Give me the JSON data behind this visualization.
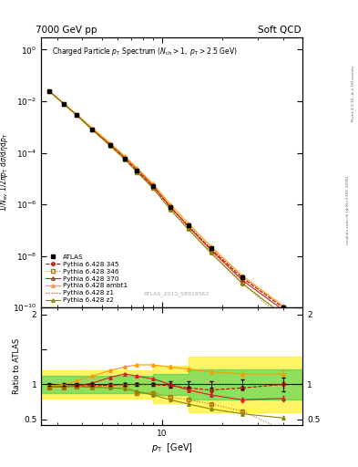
{
  "title_left": "7000 GeV pp",
  "title_right": "Soft QCD",
  "plot_title": "Charged Particle p_{T} Spectrum (N_{ch} > 1, p_{T} > 2.5 GeV)",
  "ylabel_main": "1/N_{ev} 1/2πp_{T} dσ/dηdp_{T}",
  "ylabel_ratio": "Ratio to ATLAS",
  "xlabel": "p_{T}  [GeV]",
  "watermark": "ATLAS_2010_S8918562",
  "right_label": "mcplots.cern.ch [arXiv:1306.3436]",
  "right_label2": "Rivet 3.1.10, ≥ 2.1M events",
  "xlim": [
    2.5,
    50
  ],
  "ylim_main": [
    1e-10,
    3
  ],
  "ylim_ratio": [
    0.42,
    2.1
  ],
  "atlas_pt": [
    2.75,
    3.25,
    3.75,
    4.5,
    5.5,
    6.5,
    7.5,
    9.0,
    11.0,
    13.5,
    17.5,
    25.0,
    40.0
  ],
  "atlas_vals": [
    0.025,
    0.008,
    0.003,
    0.0008,
    0.0002,
    6e-05,
    2e-05,
    5e-06,
    8e-07,
    1.5e-07,
    2e-08,
    1.5e-09,
    1e-10
  ],
  "atlas_err": [
    0.05,
    0.05,
    0.05,
    0.05,
    0.05,
    0.05,
    0.05,
    0.05,
    0.08,
    0.08,
    0.1,
    0.15,
    0.2
  ],
  "series": [
    {
      "label": "Pythia 6.428 345",
      "color": "#cc0000",
      "linestyle": "--",
      "marker": "o",
      "fillstyle": "none",
      "ratio_vals": [
        0.97,
        0.97,
        0.98,
        0.98,
        0.99,
        1.0,
        1.0,
        1.0,
        0.98,
        0.95,
        0.92,
        0.95,
        1.0
      ]
    },
    {
      "label": "Pythia 6.428 346",
      "color": "#bb7700",
      "linestyle": ":",
      "marker": "s",
      "fillstyle": "none",
      "ratio_vals": [
        0.96,
        0.96,
        0.97,
        0.97,
        0.98,
        0.99,
        0.88,
        0.88,
        0.82,
        0.78,
        0.72,
        0.62,
        0.35
      ]
    },
    {
      "label": "Pythia 6.428 370",
      "color": "#cc2222",
      "linestyle": "-",
      "marker": "^",
      "fillstyle": "none",
      "ratio_vals": [
        0.97,
        0.97,
        0.98,
        1.02,
        1.1,
        1.15,
        1.12,
        1.08,
        1.0,
        0.92,
        0.85,
        0.78,
        0.8
      ]
    },
    {
      "label": "Pythia 6.428 ambt1",
      "color": "#ff9900",
      "linestyle": "-",
      "marker": "^",
      "fillstyle": "none",
      "ratio_vals": [
        0.98,
        1.0,
        1.05,
        1.12,
        1.2,
        1.25,
        1.28,
        1.28,
        1.25,
        1.22,
        1.18,
        1.15,
        1.15
      ]
    },
    {
      "label": "Pythia 6.428 z1",
      "color": "#cc2200",
      "linestyle": ":",
      "marker": null,
      "fillstyle": "none",
      "ratio_vals": [
        0.975,
        0.978,
        0.982,
        0.986,
        0.99,
        0.995,
        1.0,
        1.0,
        1.0,
        1.0,
        1.0,
        1.0,
        1.0
      ]
    },
    {
      "label": "Pythia 6.428 z2",
      "color": "#888800",
      "linestyle": "-",
      "marker": "^",
      "fillstyle": "none",
      "ratio_vals": [
        0.97,
        0.97,
        0.97,
        0.96,
        0.95,
        0.94,
        0.9,
        0.85,
        0.78,
        0.72,
        0.65,
        0.58,
        0.52
      ]
    }
  ],
  "green_color": "#33cc55",
  "yellow_color": "#ffee00",
  "green_alpha": 0.55,
  "yellow_alpha": 0.6,
  "band_steps": {
    "yellow": {
      "x": [
        2.5,
        9.0,
        13.5,
        50.0
      ],
      "lo": [
        0.8,
        0.73,
        0.6,
        0.6
      ],
      "hi": [
        1.2,
        1.27,
        1.4,
        1.4
      ]
    },
    "green": {
      "x": [
        2.5,
        9.0,
        13.5,
        50.0
      ],
      "lo": [
        0.88,
        0.85,
        0.78,
        0.78
      ],
      "hi": [
        1.12,
        1.15,
        1.22,
        1.22
      ]
    }
  }
}
